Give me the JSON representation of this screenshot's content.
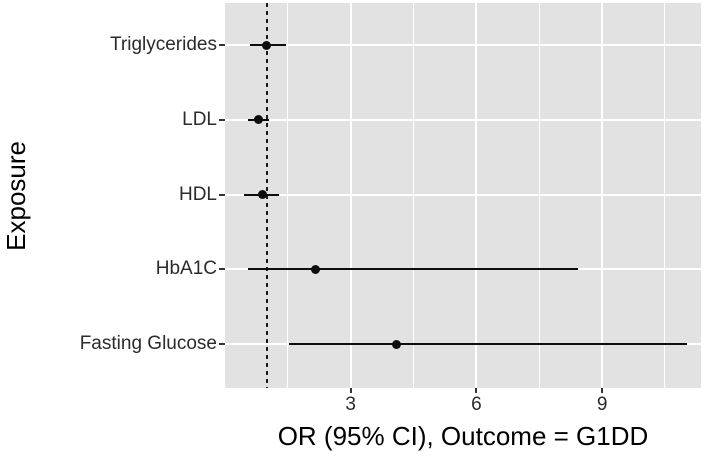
{
  "figure": {
    "y_axis_title": "Exposure",
    "x_axis_title": "OR (95% CI), Outcome = G1DD"
  },
  "chart_data": {
    "type": "scatter",
    "subtype": "forest-plot",
    "title": "",
    "xlabel": "OR (95% CI), Outcome = G1DD",
    "ylabel": "Exposure",
    "x_tick_labels": [
      "3",
      "6",
      "9"
    ],
    "x_major_ticks": [
      3,
      6,
      9
    ],
    "x_minor_gridlines": [
      1.5,
      4.5,
      7.5,
      10.5
    ],
    "xlim": [
      0,
      11.36
    ],
    "reference_line": {
      "x": 1,
      "style": "dashed",
      "color": "#1a1a1a"
    },
    "legend": "none",
    "grid": "on",
    "panel_background": "#e2e2e2",
    "gridline_color": "#ffffff",
    "point_color": "#0d0d0d",
    "categories": [
      "Triglycerides",
      "LDL",
      "HDL",
      "HbA1C",
      "Fasting Glucose"
    ],
    "rows": [
      {
        "label": "Triglycerides",
        "or": 0.98,
        "ci_low": 0.6,
        "ci_high": 1.45
      },
      {
        "label": "LDL",
        "or": 0.79,
        "ci_low": 0.55,
        "ci_high": 1.05
      },
      {
        "label": "HDL",
        "or": 0.9,
        "ci_low": 0.45,
        "ci_high": 1.29
      },
      {
        "label": "HbA1C",
        "or": 2.17,
        "ci_low": 0.55,
        "ci_high": 8.43
      },
      {
        "label": "Fasting Glucose",
        "or": 4.1,
        "ci_low": 1.52,
        "ci_high": 11.02
      }
    ]
  }
}
